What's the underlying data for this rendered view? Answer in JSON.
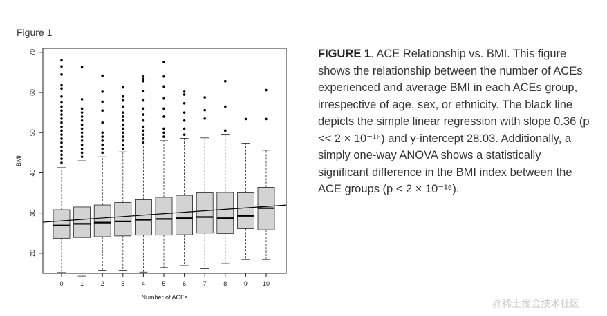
{
  "figure_label": "Figure 1",
  "caption": {
    "heading": "FIGURE 1",
    "text": ". ACE Relationship vs. BMI. This figure shows the relationship between the number of ACEs experienced and average BMI in each ACEs group, irrespective of age, sex, or ethnicity. The black line depicts the simple linear regression with slope 0.36 (p << 2 × 10⁻¹⁶) and y-intercept 28.03. Additionally, a simply one-way ANOVA shows a statistically significant difference in the BMI index between the ACE groups (p < 2 × 10⁻¹⁶)."
  },
  "watermark": "@稀土掘金技术社区",
  "chart_data": {
    "type": "box",
    "title": "",
    "xlabel": "Number of ACEs",
    "ylabel": "BMI",
    "ylim": [
      15,
      71
    ],
    "yticks": [
      20,
      30,
      40,
      50,
      60,
      70
    ],
    "categories": [
      "0",
      "1",
      "2",
      "3",
      "4",
      "5",
      "6",
      "7",
      "8",
      "9",
      "10"
    ],
    "series": [
      {
        "name": "0",
        "whisker_low": 15.2,
        "q1": 23.7,
        "median": 26.9,
        "q3": 30.8,
        "whisker_high": 41.3,
        "outliers": [
          42.5,
          43.5,
          44.5,
          45.5,
          46.5,
          47.5,
          48.5,
          49.5,
          50.5,
          51.5,
          52.5,
          53.5,
          54.5,
          55.5,
          56.5,
          57.5,
          59,
          61,
          61.8,
          64.5,
          66.5,
          68
        ]
      },
      {
        "name": "1",
        "whisker_low": 14.3,
        "q1": 23.9,
        "median": 27.3,
        "q3": 31.5,
        "whisker_high": 43.0,
        "outliers": [
          44,
          45,
          46,
          47,
          48,
          49,
          50,
          51,
          52,
          53,
          54,
          55,
          56,
          58.3,
          66.3
        ]
      },
      {
        "name": "2",
        "whisker_low": 15.6,
        "q1": 24.1,
        "median": 27.6,
        "q3": 32.0,
        "whisker_high": 44.0,
        "outliers": [
          45,
          46,
          47,
          48,
          49,
          50,
          52.5,
          55.5,
          57.7,
          60.2,
          64.2
        ]
      },
      {
        "name": "3",
        "whisker_low": 15.6,
        "q1": 24.3,
        "median": 27.9,
        "q3": 32.6,
        "whisker_high": 45.2,
        "outliers": [
          46,
          47,
          48,
          49,
          50,
          51,
          52,
          53,
          54,
          55,
          56.5,
          58,
          59,
          61.3
        ]
      },
      {
        "name": "4",
        "whisker_low": 15.3,
        "q1": 24.5,
        "median": 28.3,
        "q3": 33.3,
        "whisker_high": 46.7,
        "outliers": [
          47.5,
          48.5,
          49.5,
          50.5,
          51.5,
          53,
          54.5,
          56,
          58,
          60.3,
          62.8,
          63.4,
          64
        ]
      },
      {
        "name": "5",
        "whisker_low": 16.4,
        "q1": 24.5,
        "median": 28.5,
        "q3": 33.9,
        "whisker_high": 48.0,
        "outliers": [
          49,
          50,
          51,
          54,
          56,
          58.5,
          61.5,
          64,
          67.6
        ]
      },
      {
        "name": "6",
        "whisker_low": 16.9,
        "q1": 24.6,
        "median": 28.7,
        "q3": 34.4,
        "whisker_high": 48.6,
        "outliers": [
          49.5,
          51,
          53,
          55,
          57.3,
          59.5,
          60.2
        ]
      },
      {
        "name": "7",
        "whisker_low": 16.1,
        "q1": 25.0,
        "median": 29.0,
        "q3": 35.0,
        "whisker_high": 48.7,
        "outliers": [
          53.5,
          55.6,
          58.8
        ]
      },
      {
        "name": "8",
        "whisker_low": 17.4,
        "q1": 24.9,
        "median": 28.7,
        "q3": 35.1,
        "whisker_high": 49.6,
        "outliers": [
          50.5,
          56.5,
          62.8
        ]
      },
      {
        "name": "9",
        "whisker_low": 18.4,
        "q1": 26.1,
        "median": 29.3,
        "q3": 35.0,
        "whisker_high": 47.4,
        "outliers": [
          53.4
        ]
      },
      {
        "name": "10",
        "whisker_low": 18.4,
        "q1": 25.8,
        "median": 31.2,
        "q3": 36.4,
        "whisker_high": 45.6,
        "outliers": [
          53.4,
          60.6
        ]
      }
    ],
    "regression": {
      "slope": 0.36,
      "intercept": 28.03
    }
  }
}
